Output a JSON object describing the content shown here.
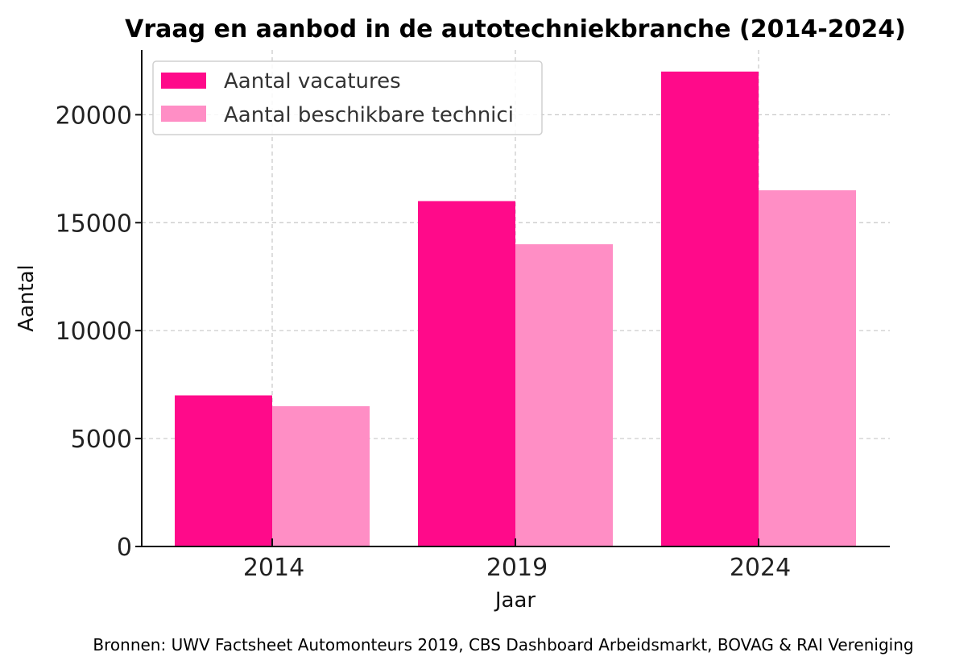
{
  "chart_data": {
    "type": "bar",
    "title": "Vraag en aanbod in de autotechniekbranche (2014-2024)",
    "xlabel": "Jaar",
    "ylabel": "Aantal",
    "categories": [
      "2014",
      "2019",
      "2024"
    ],
    "series": [
      {
        "name": "Aantal vacatures",
        "values": [
          7000,
          16000,
          22000
        ],
        "color": "#ff0a8a"
      },
      {
        "name": "Aantal beschikbare technici",
        "values": [
          6500,
          14000,
          16500
        ],
        "color": "#ff8ec5"
      }
    ],
    "ylim": [
      0,
      23000
    ],
    "yticks": [
      0,
      5000,
      10000,
      15000,
      20000
    ],
    "grid": true,
    "legend_position": "top-left",
    "source": "Bronnen: UWV Factsheet Automonteurs 2019, CBS Dashboard Arbeidsmarkt, BOVAG & RAI Vereniging"
  }
}
